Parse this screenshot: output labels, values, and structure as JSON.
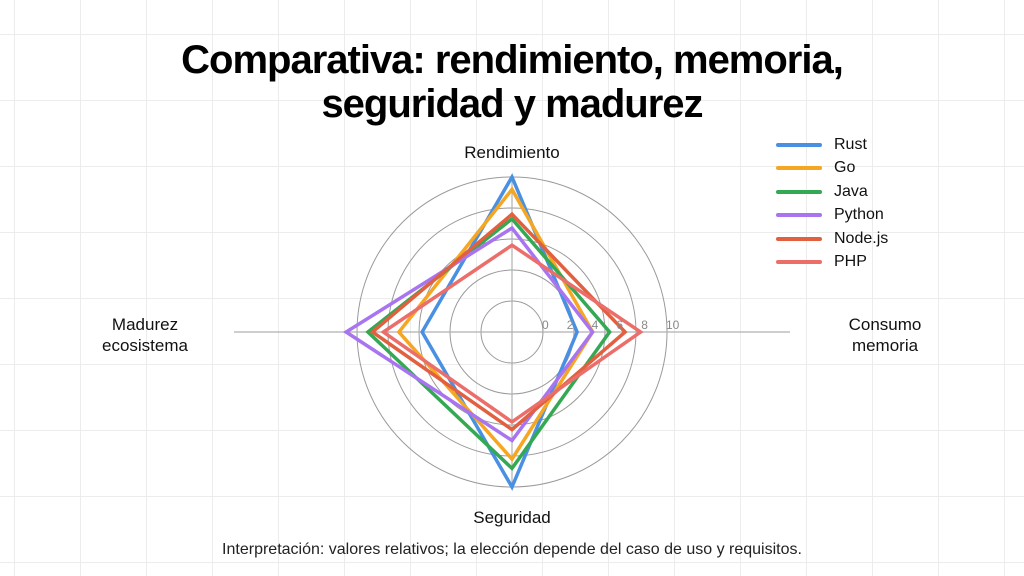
{
  "title_lines": [
    "Comparativa: rendimiento, memoria,",
    "seguridad y madurez"
  ],
  "footnote": "Interpretación: valores relativos; la elección depende del caso de uso y requisitos.",
  "chart_data": {
    "type": "radar",
    "title": "Comparativa: rendimiento, memoria, seguridad y madurez",
    "axes": [
      {
        "name": "Rendimiento",
        "lines": [
          "Rendimiento"
        ],
        "position": "top"
      },
      {
        "name": "Consumo memoria",
        "lines": [
          "Consumo",
          "memoria"
        ],
        "position": "right"
      },
      {
        "name": "Seguridad",
        "lines": [
          "Seguridad"
        ],
        "position": "bottom"
      },
      {
        "name": "Madurez ecosistema",
        "lines": [
          "Madurez",
          "ecosistema"
        ],
        "position": "left"
      }
    ],
    "range": [
      0,
      10
    ],
    "tick_values": [
      0,
      2,
      4,
      6,
      8,
      10
    ],
    "tick_labels": [
      "0",
      "2",
      "4",
      "6",
      "8",
      "10"
    ],
    "grid": true,
    "legend_position": "top-right",
    "series": [
      {
        "name": "Rust",
        "color": "#4a90e2",
        "values": [
          10,
          4.2,
          10,
          5.8
        ]
      },
      {
        "name": "Go",
        "color": "#f5a623",
        "values": [
          9.2,
          5.2,
          8.2,
          7.3
        ]
      },
      {
        "name": "Java",
        "color": "#34a853",
        "values": [
          7.3,
          6.3,
          8.8,
          9.3
        ]
      },
      {
        "name": "Python",
        "color": "#a874f0",
        "values": [
          6.7,
          5.2,
          7.0,
          10.7
        ]
      },
      {
        "name": "Node.js",
        "color": "#e06040",
        "values": [
          7.6,
          7.3,
          6.3,
          9.0
        ]
      },
      {
        "name": "PHP",
        "color": "#ec6e6a",
        "values": [
          5.6,
          8.3,
          5.8,
          8.3
        ]
      }
    ]
  }
}
